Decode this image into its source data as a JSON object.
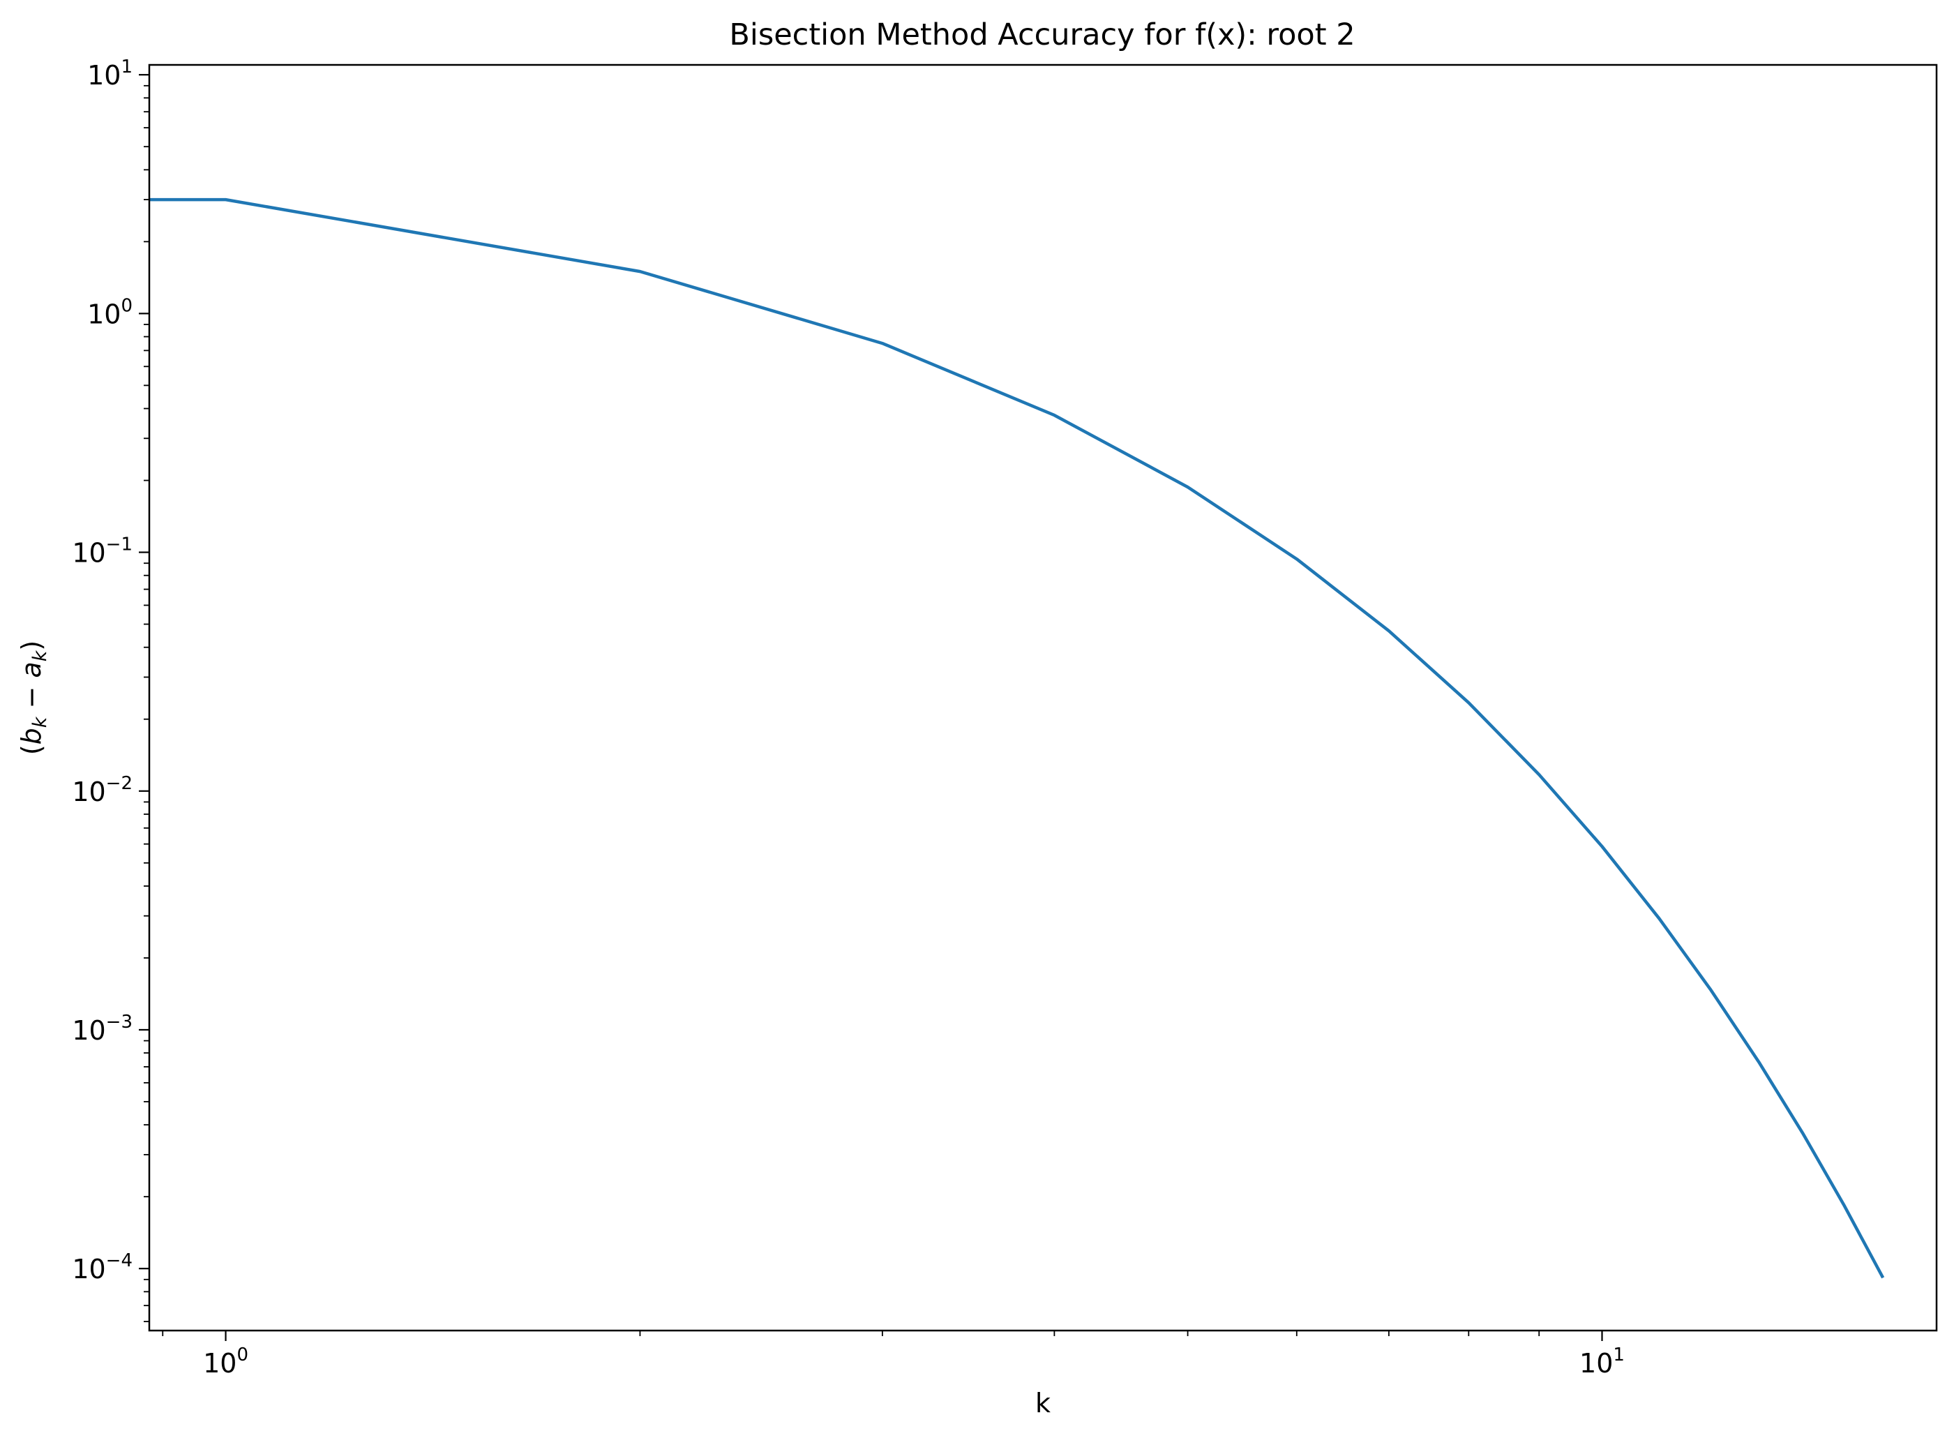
{
  "chart_data": {
    "type": "line",
    "title": "Bisection Method Accuracy for f(x): root 2",
    "xlabel": "k",
    "ylabel": "(b_k − a_k)",
    "ylabel_parts": {
      "open": "(",
      "b": "b",
      "b_sub": "k",
      "minus": " − ",
      "a": "a",
      "a_sub": "k",
      "close": ")"
    },
    "xscale": "log",
    "yscale": "log",
    "xlim": [
      0.88,
      17.5
    ],
    "ylim": [
      5.5e-05,
      11
    ],
    "grid": false,
    "x_ticks": [
      {
        "value": 1,
        "base": "10",
        "exp": "0"
      },
      {
        "value": 10,
        "base": "10",
        "exp": "1"
      }
    ],
    "y_ticks": [
      {
        "value": 10,
        "base": "10",
        "exp": "1"
      },
      {
        "value": 1,
        "base": "10",
        "exp": "0"
      },
      {
        "value": 0.1,
        "base": "10",
        "exp": "−1"
      },
      {
        "value": 0.01,
        "base": "10",
        "exp": "−2"
      },
      {
        "value": 0.001,
        "base": "10",
        "exp": "−3"
      },
      {
        "value": 0.0001,
        "base": "10",
        "exp": "−4"
      }
    ],
    "line_color": "#1f77b4",
    "series": [
      {
        "x": [
          0,
          1,
          2,
          3,
          4,
          5,
          6,
          7,
          8,
          9,
          10,
          11,
          12,
          13,
          14,
          15,
          16
        ],
        "values": [
          3,
          3,
          1.5,
          0.75,
          0.375,
          0.1875,
          0.09375,
          0.046875,
          0.0234375,
          0.01171875,
          0.005859375,
          0.0029296875,
          0.00146484375,
          0.000732421875,
          0.0003662109375,
          0.00018310546875,
          9.1552734375e-05
        ]
      }
    ]
  }
}
